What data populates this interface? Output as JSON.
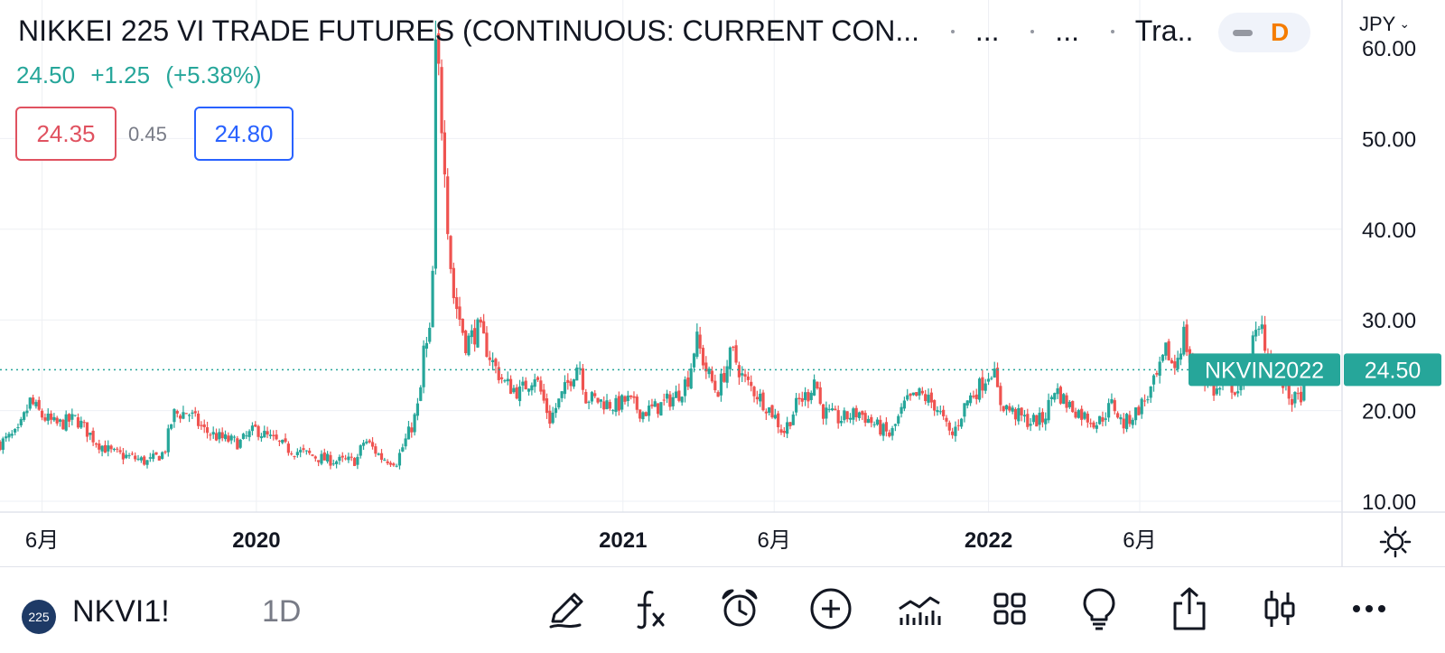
{
  "header": {
    "title": "NIKKEI 225 VI TRADE FUTURES (CONTINUOUS: CURRENT CON...",
    "seg1": "...",
    "seg2": "...",
    "seg3": "Tra...",
    "last": "24.50",
    "change": "+1.25",
    "change_pct": "(+5.38%)",
    "bid": "24.35",
    "spread": "0.45",
    "ask": "24.80",
    "mode_letter": "D",
    "currency": "JPY"
  },
  "bottom": {
    "badge": "225",
    "symbol": "NKVI1!",
    "interval": "1D"
  },
  "icons": [
    "pencil-icon",
    "function-icon",
    "alarm-clock-icon",
    "add-icon",
    "indicators-icon",
    "layout-grid-icon",
    "lightbulb-icon",
    "share-icon",
    "candles-icon",
    "more-icon",
    "settings-icon"
  ],
  "colors": {
    "up": "#26a69a",
    "down": "#ef5350",
    "label_bg": "#26a69a",
    "grid": "#eef0f4"
  },
  "chart_data": {
    "type": "candlestick",
    "y_ticks": [
      "10.00",
      "20.00",
      "30.00",
      "40.00",
      "50.00",
      "60.00"
    ],
    "ylim": [
      10,
      60
    ],
    "x_ticks": [
      {
        "label": "6月",
        "date": "2019-06-01",
        "bold": false
      },
      {
        "label": "2020",
        "date": "2020-01-01",
        "bold": true
      },
      {
        "label": "2021",
        "date": "2021-01-01",
        "bold": true
      },
      {
        "label": "6月",
        "date": "2021-06-01",
        "bold": false
      },
      {
        "label": "2022",
        "date": "2022-01-01",
        "bold": true
      },
      {
        "label": "6月",
        "date": "2022-06-01",
        "bold": false
      }
    ],
    "x_range": [
      "2019-04-20",
      "2022-12-20"
    ],
    "current_price": 24.5,
    "current_price_label": "24.50",
    "series_label": "NKVIN2022",
    "close_path": [
      [
        "2019-04-20",
        16.4
      ],
      [
        "2019-05-08",
        17.5
      ],
      [
        "2019-05-20",
        21.0
      ],
      [
        "2019-06-01",
        19.4
      ],
      [
        "2019-06-15",
        18.4
      ],
      [
        "2019-07-05",
        19.1
      ],
      [
        "2019-07-25",
        16.6
      ],
      [
        "2019-08-10",
        15.3
      ],
      [
        "2019-08-30",
        14.8
      ],
      [
        "2019-09-15",
        14.3
      ],
      [
        "2019-10-01",
        15.4
      ],
      [
        "2019-10-10",
        19.6
      ],
      [
        "2019-10-25",
        19.8
      ],
      [
        "2019-11-10",
        17.8
      ],
      [
        "2019-11-25",
        17.0
      ],
      [
        "2019-12-15",
        16.4
      ],
      [
        "2020-01-01",
        18.0
      ],
      [
        "2020-01-10",
        17.2
      ],
      [
        "2020-02-01",
        15.8
      ],
      [
        "2020-02-20",
        15.2
      ],
      [
        "2020-03-10",
        14.6
      ],
      [
        "2020-03-25",
        14.4
      ],
      [
        "2020-04-10",
        14.5
      ],
      [
        "2020-04-18",
        16.8
      ],
      [
        "2020-05-05",
        14.8
      ],
      [
        "2020-05-20",
        14.4
      ],
      [
        "2020-05-30",
        17.0
      ],
      [
        "2020-06-05",
        18.5
      ],
      [
        "2020-06-12",
        21.0
      ],
      [
        "2020-06-17",
        28.0
      ],
      [
        "2020-06-21",
        26.0
      ],
      [
        "2020-06-25",
        35.0
      ],
      [
        "2020-06-28",
        59.0
      ],
      [
        "2020-07-01",
        57.0
      ],
      [
        "2020-07-04",
        52.0
      ],
      [
        "2020-07-07",
        48.0
      ],
      [
        "2020-07-10",
        41.0
      ],
      [
        "2020-07-15",
        33.0
      ],
      [
        "2020-07-20",
        31.0
      ],
      [
        "2020-07-28",
        27.5
      ],
      [
        "2020-08-10",
        29.0
      ],
      [
        "2020-08-25",
        25.0
      ],
      [
        "2020-09-05",
        23.0
      ],
      [
        "2020-09-20",
        22.0
      ],
      [
        "2020-10-05",
        24.0
      ],
      [
        "2020-10-20",
        19.0
      ],
      [
        "2020-11-05",
        22.5
      ],
      [
        "2020-11-18",
        25.5
      ],
      [
        "2020-11-25",
        21.5
      ],
      [
        "2020-12-10",
        21.0
      ],
      [
        "2020-12-25",
        20.5
      ],
      [
        "2021-01-05",
        21.2
      ],
      [
        "2021-01-20",
        19.8
      ],
      [
        "2021-02-05",
        20.4
      ],
      [
        "2021-02-25",
        21.8
      ],
      [
        "2021-03-08",
        23.8
      ],
      [
        "2021-03-15",
        28.0
      ],
      [
        "2021-03-25",
        24.5
      ],
      [
        "2021-04-05",
        22.0
      ],
      [
        "2021-04-20",
        26.5
      ],
      [
        "2021-05-01",
        23.5
      ],
      [
        "2021-05-15",
        21.8
      ],
      [
        "2021-06-01",
        19.5
      ],
      [
        "2021-06-10",
        17.5
      ],
      [
        "2021-06-25",
        21.0
      ],
      [
        "2021-07-05",
        21.8
      ],
      [
        "2021-07-12",
        23.8
      ],
      [
        "2021-07-18",
        20.0
      ],
      [
        "2021-08-05",
        19.0
      ],
      [
        "2021-08-25",
        19.8
      ],
      [
        "2021-09-10",
        18.4
      ],
      [
        "2021-09-25",
        17.2
      ],
      [
        "2021-10-10",
        20.8
      ],
      [
        "2021-10-25",
        21.8
      ],
      [
        "2021-11-10",
        20.5
      ],
      [
        "2021-11-25",
        17.0
      ],
      [
        "2021-12-10",
        21.0
      ],
      [
        "2021-12-22",
        22.5
      ],
      [
        "2022-01-05",
        24.8
      ],
      [
        "2022-01-12",
        21.0
      ],
      [
        "2022-01-25",
        19.8
      ],
      [
        "2022-02-10",
        18.8
      ],
      [
        "2022-02-25",
        19.0
      ],
      [
        "2022-03-08",
        22.5
      ],
      [
        "2022-03-20",
        20.8
      ],
      [
        "2022-04-05",
        19.5
      ],
      [
        "2022-04-20",
        18.6
      ],
      [
        "2022-05-05",
        20.8
      ],
      [
        "2022-05-15",
        18.4
      ],
      [
        "2022-05-28",
        19.8
      ],
      [
        "2022-06-10",
        21.8
      ],
      [
        "2022-06-20",
        24.0
      ],
      [
        "2022-06-28",
        26.8
      ],
      [
        "2022-07-05",
        24.5
      ],
      [
        "2022-07-15",
        28.5
      ],
      [
        "2022-07-22",
        25.0
      ],
      [
        "2022-08-05",
        23.5
      ],
      [
        "2022-08-15",
        22.0
      ],
      [
        "2022-08-28",
        23.0
      ],
      [
        "2022-09-10",
        22.0
      ],
      [
        "2022-09-22",
        27.5
      ],
      [
        "2022-10-01",
        29.0
      ],
      [
        "2022-10-10",
        25.0
      ],
      [
        "2022-10-20",
        23.5
      ],
      [
        "2022-10-28",
        21.5
      ],
      [
        "2022-11-05",
        21.0
      ],
      [
        "2022-11-12",
        22.5
      ],
      [
        "2022-11-20",
        24.5
      ]
    ]
  }
}
